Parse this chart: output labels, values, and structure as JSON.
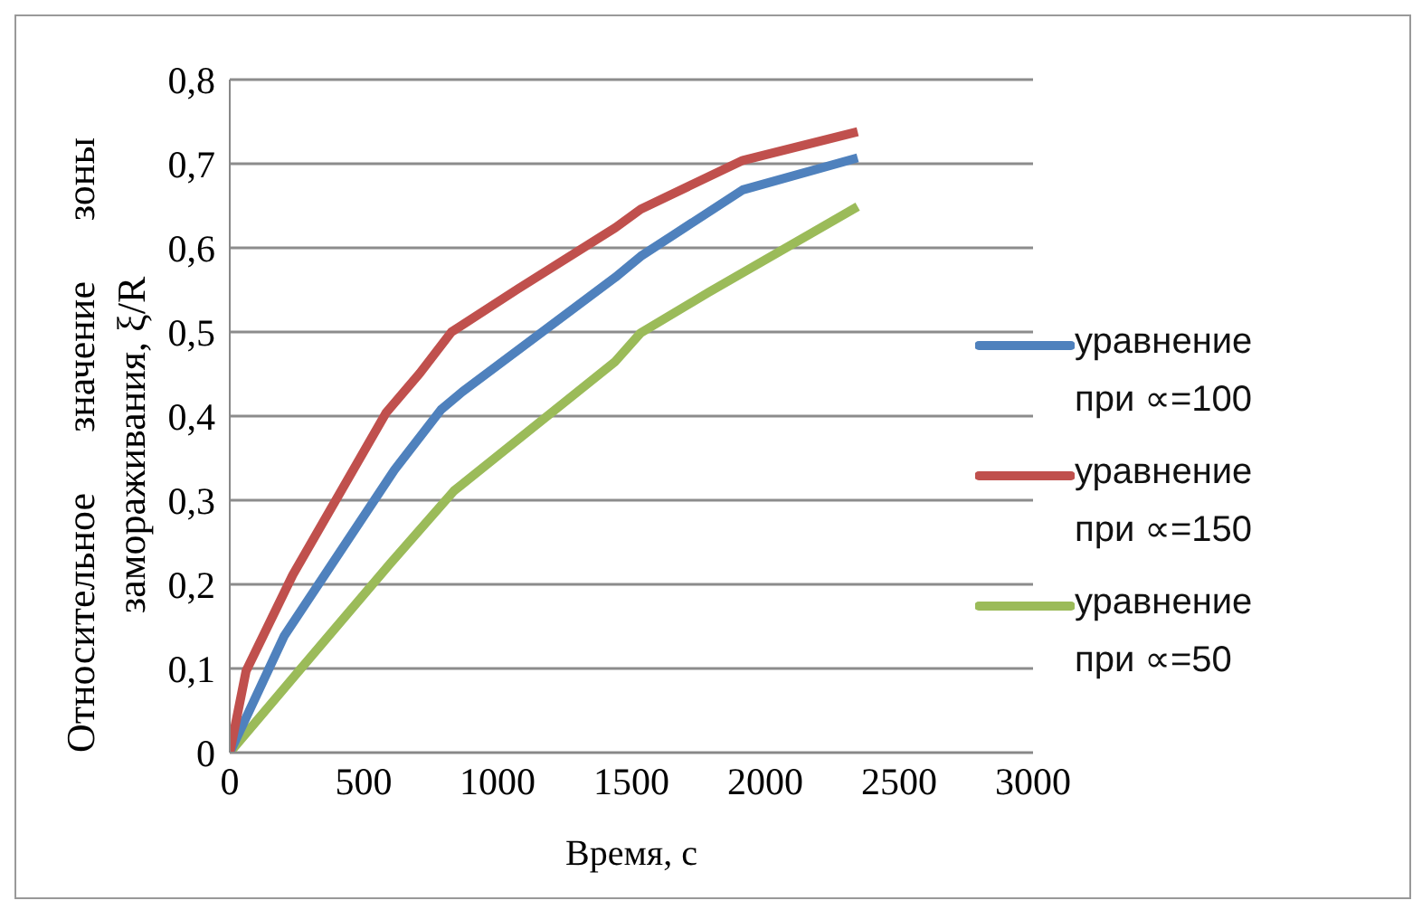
{
  "chart_data": {
    "type": "line",
    "xlabel": "Время, с",
    "ylabel": "Относительное значение зоны замораживания, ξ/R",
    "xlim": [
      0,
      3000
    ],
    "xticks": [
      0,
      500,
      1000,
      1500,
      2000,
      2500,
      3000
    ],
    "ylim": [
      0,
      0.8
    ],
    "yticks": [
      {
        "value": 0,
        "label": "0"
      },
      {
        "value": 0.1,
        "label": "0,1"
      },
      {
        "value": 0.2,
        "label": "0,2"
      },
      {
        "value": 0.3,
        "label": "0,3"
      },
      {
        "value": 0.4,
        "label": "0,4"
      },
      {
        "value": 0.5,
        "label": "0,5"
      },
      {
        "value": 0.6,
        "label": "0,6"
      },
      {
        "value": 0.7,
        "label": "0,7"
      },
      {
        "value": 0.8,
        "label": "0,8"
      }
    ],
    "grid": "y",
    "legend": "right",
    "marker": "none",
    "line_style": "solid",
    "series": [
      {
        "name": "уравнение при ∝=50",
        "color": "#9bbb59",
        "x": [
          0,
          266,
          600,
          837,
          1440,
          1535,
          1788,
          2345
        ],
        "values": [
          0,
          0.1,
          0.225,
          0.311,
          0.465,
          0.499,
          0.547,
          0.649
        ]
      },
      {
        "name": "уравнение при ∝=100",
        "color": "#4f81bd",
        "x": [
          0,
          204,
          615,
          790,
          869,
          1440,
          1535,
          1916,
          2345
        ],
        "values": [
          0,
          0.139,
          0.336,
          0.408,
          0.429,
          0.565,
          0.59,
          0.669,
          0.707
        ]
      },
      {
        "name": "уравнение при ∝=150",
        "color": "#c0504d",
        "x": [
          0,
          61,
          235,
          584,
          710,
          828,
          1075,
          1440,
          1535,
          1916,
          2345
        ],
        "values": [
          0,
          0.097,
          0.211,
          0.404,
          0.451,
          0.5,
          0.551,
          0.624,
          0.646,
          0.704,
          0.738
        ]
      }
    ]
  }
}
